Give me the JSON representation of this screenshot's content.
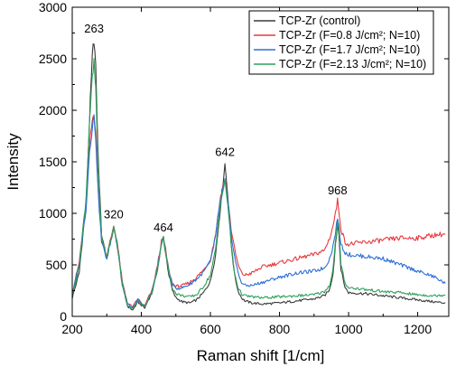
{
  "chart_data": {
    "type": "line",
    "xlabel": "Raman shift [1/cm]",
    "ylabel": "Intensity",
    "xlim": [
      200,
      1290
    ],
    "ylim": [
      0,
      3000
    ],
    "xticks": [
      200,
      400,
      600,
      800,
      1000,
      1200
    ],
    "yticks": [
      0,
      500,
      1000,
      1500,
      2000,
      2500,
      3000
    ],
    "grid": false,
    "legend_position": "top-right",
    "annotations": [
      {
        "text": "263",
        "x": 263,
        "y": 2720
      },
      {
        "text": "320",
        "x": 320,
        "y": 915
      },
      {
        "text": "464",
        "x": 464,
        "y": 790
      },
      {
        "text": "642",
        "x": 642,
        "y": 1520
      },
      {
        "text": "968",
        "x": 968,
        "y": 1150
      }
    ],
    "series": [
      {
        "name": "TCP-Zr (control)",
        "color": "#3a3a3a",
        "x": [
          200,
          220,
          240,
          250,
          258,
          263,
          268,
          275,
          285,
          300,
          310,
          320,
          330,
          345,
          360,
          375,
          390,
          400,
          410,
          420,
          430,
          440,
          450,
          458,
          464,
          470,
          480,
          490,
          500,
          520,
          540,
          560,
          580,
          600,
          615,
          630,
          642,
          650,
          660,
          670,
          680,
          690,
          700,
          720,
          750,
          800,
          850,
          900,
          930,
          945,
          955,
          962,
          968,
          972,
          978,
          990,
          1000,
          1050,
          1100,
          1150,
          1200,
          1250,
          1280
        ],
        "y": [
          180,
          420,
          1100,
          1900,
          2500,
          2700,
          2400,
          1550,
          800,
          560,
          720,
          850,
          700,
          300,
          100,
          60,
          140,
          110,
          80,
          160,
          220,
          350,
          520,
          700,
          770,
          620,
          400,
          250,
          180,
          140,
          130,
          160,
          230,
          340,
          600,
          1100,
          1480,
          1200,
          700,
          400,
          250,
          180,
          150,
          130,
          120,
          130,
          150,
          170,
          200,
          260,
          420,
          700,
          900,
          800,
          450,
          280,
          230,
          220,
          200,
          180,
          160,
          140,
          130
        ]
      },
      {
        "name": "TCP-Zr (F=0.8 J/cm²; N=10)",
        "color": "#e8383d",
        "x": [
          200,
          220,
          240,
          250,
          258,
          263,
          268,
          275,
          285,
          300,
          310,
          320,
          330,
          345,
          360,
          375,
          390,
          400,
          410,
          420,
          430,
          440,
          450,
          458,
          464,
          470,
          480,
          490,
          500,
          520,
          540,
          560,
          580,
          600,
          615,
          630,
          642,
          650,
          660,
          670,
          680,
          690,
          700,
          720,
          750,
          800,
          850,
          900,
          930,
          945,
          955,
          962,
          968,
          972,
          978,
          990,
          1000,
          1050,
          1100,
          1150,
          1200,
          1250,
          1280
        ],
        "y": [
          230,
          520,
          1100,
          1650,
          1900,
          1980,
          1800,
          1250,
          750,
          580,
          730,
          880,
          730,
          330,
          130,
          90,
          170,
          130,
          100,
          180,
          240,
          380,
          560,
          720,
          760,
          650,
          440,
          320,
          290,
          300,
          330,
          380,
          450,
          550,
          800,
          1180,
          1340,
          1150,
          850,
          650,
          500,
          420,
          400,
          420,
          480,
          520,
          560,
          600,
          640,
          760,
          880,
          1000,
          1120,
          1030,
          850,
          720,
          700,
          720,
          740,
          760,
          760,
          790,
          800
        ]
      },
      {
        "name": "TCP-Zr (F=1.7 J/cm²; N=10)",
        "color": "#2e6fd6",
        "x": [
          200,
          220,
          240,
          250,
          258,
          263,
          268,
          275,
          285,
          300,
          310,
          320,
          330,
          345,
          360,
          375,
          390,
          400,
          410,
          420,
          430,
          440,
          450,
          458,
          464,
          470,
          480,
          490,
          500,
          520,
          540,
          560,
          580,
          600,
          615,
          630,
          642,
          650,
          660,
          670,
          680,
          690,
          700,
          720,
          750,
          800,
          850,
          900,
          930,
          945,
          955,
          962,
          968,
          972,
          978,
          990,
          1000,
          1050,
          1100,
          1150,
          1200,
          1250,
          1280
        ],
        "y": [
          220,
          500,
          1050,
          1600,
          1850,
          1930,
          1750,
          1200,
          720,
          560,
          710,
          860,
          710,
          320,
          120,
          80,
          160,
          120,
          90,
          170,
          230,
          370,
          540,
          700,
          750,
          640,
          430,
          310,
          270,
          280,
          310,
          360,
          430,
          530,
          780,
          1150,
          1310,
          1120,
          800,
          580,
          420,
          330,
          300,
          300,
          330,
          380,
          420,
          440,
          470,
          560,
          680,
          820,
          960,
          860,
          700,
          620,
          600,
          580,
          560,
          500,
          440,
          380,
          320
        ]
      },
      {
        "name": "TCP-Zr (F=2.13 J/cm²; N=10)",
        "color": "#2ca05a",
        "x": [
          200,
          220,
          240,
          250,
          258,
          263,
          268,
          275,
          285,
          300,
          310,
          320,
          330,
          345,
          360,
          375,
          390,
          400,
          410,
          420,
          430,
          440,
          450,
          458,
          464,
          470,
          480,
          490,
          500,
          520,
          540,
          560,
          580,
          600,
          615,
          630,
          642,
          650,
          660,
          670,
          680,
          690,
          700,
          720,
          750,
          800,
          850,
          900,
          930,
          945,
          955,
          962,
          968,
          972,
          978,
          990,
          1000,
          1050,
          1100,
          1150,
          1200,
          1250,
          1280
        ],
        "y": [
          210,
          480,
          1150,
          1900,
          2300,
          2450,
          2200,
          1450,
          780,
          570,
          720,
          860,
          710,
          310,
          110,
          70,
          150,
          120,
          90,
          170,
          230,
          360,
          530,
          710,
          760,
          630,
          420,
          280,
          220,
          200,
          190,
          210,
          290,
          400,
          650,
          1130,
          1300,
          1100,
          700,
          420,
          280,
          220,
          200,
          190,
          180,
          190,
          200,
          210,
          240,
          300,
          460,
          720,
          920,
          820,
          500,
          320,
          280,
          260,
          240,
          230,
          210,
          200,
          210
        ]
      }
    ]
  }
}
